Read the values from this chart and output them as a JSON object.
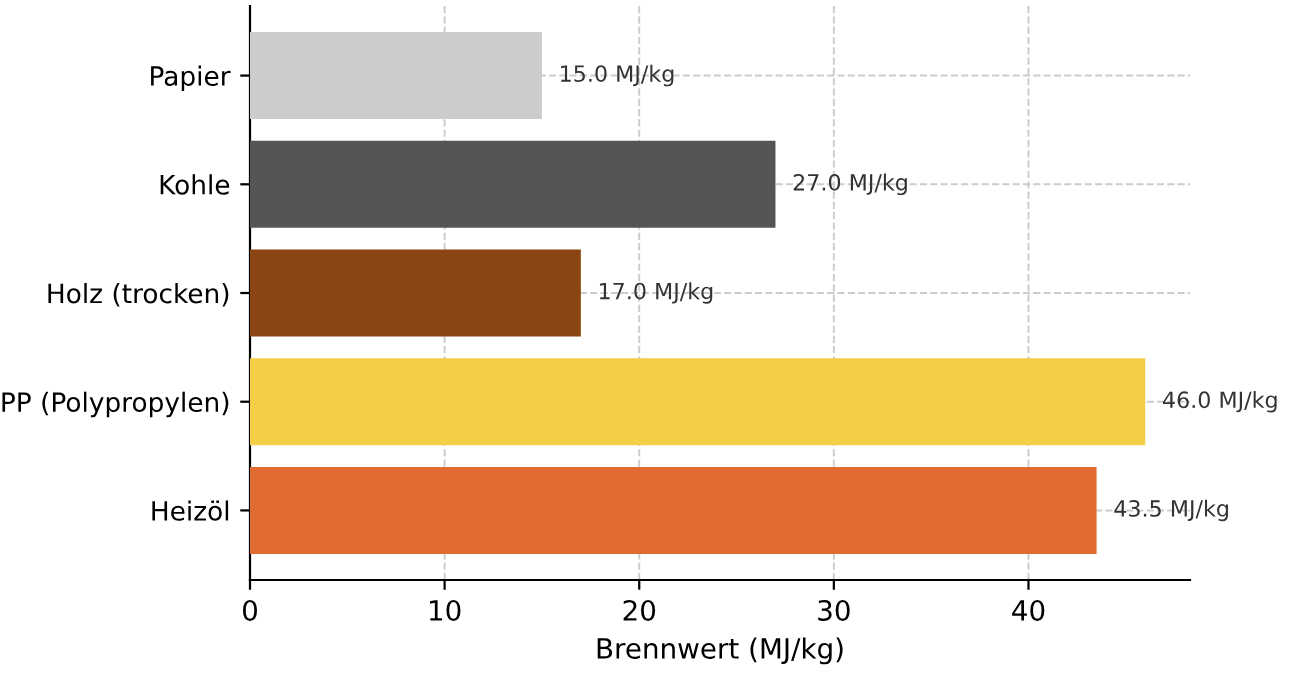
{
  "chart_data": {
    "type": "bar",
    "orientation": "horizontal",
    "xlabel": "Brennwert (MJ/kg)",
    "categories": [
      "Papier",
      "Kohle",
      "Holz (trocken)",
      "PP (Polypropylen)",
      "Heizöl"
    ],
    "values": [
      15.0,
      27.0,
      17.0,
      46.0,
      43.5
    ],
    "colors": [
      "#cccccc",
      "#555555",
      "#8b4513",
      "#f4ce47",
      "#e06c32"
    ],
    "value_labels": [
      "15.0 MJ/kg",
      "27.0 MJ/kg",
      "17.0 MJ/kg",
      "46.0 MJ/kg",
      "43.5 MJ/kg"
    ],
    "xlim": [
      0,
      48.3
    ],
    "xticks": [
      0,
      10,
      20,
      30,
      40
    ],
    "grid": true
  }
}
